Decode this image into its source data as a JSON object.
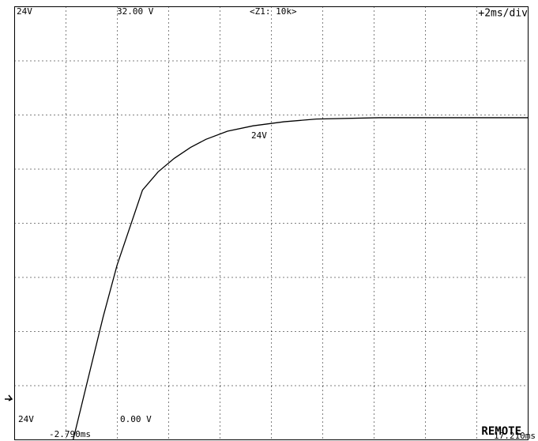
{
  "chart_data": {
    "type": "line",
    "top_left_label": "24V",
    "top_voltage": "32.00 V",
    "zoom": "<Z1: 10k>",
    "timebase": "+2ms/div",
    "trace_label": "24V",
    "bottom_left_label": "24V",
    "bottom_voltage": "0.00 V",
    "start_time": "-2.790ms",
    "end_time": "17.210ms",
    "status": "REMOTE",
    "x": [
      -0.51,
      0.66,
      1.2,
      2.19,
      2.8,
      3.43,
      4.06,
      4.66,
      5.5,
      6.5,
      7.7,
      8.96,
      11.4,
      14.0,
      17.21
    ],
    "series": [
      {
        "color": "#000000",
        "values": [
          0,
          9.1,
          12.9,
          18.45,
          19.8,
          20.8,
          21.6,
          22.2,
          22.8,
          23.2,
          23.5,
          23.7,
          23.8,
          23.8,
          23.8
        ]
      }
    ],
    "xlim": [
      -2.79,
      17.21
    ],
    "ylim": [
      0,
      32
    ],
    "xticks": [
      -2.79,
      -0.79,
      1.21,
      3.21,
      5.21,
      7.21,
      9.21,
      11.21,
      13.21,
      15.21,
      17.21
    ],
    "yticks": [
      0,
      4,
      8,
      12,
      16,
      20,
      24,
      28,
      32
    ],
    "grid": true
  }
}
